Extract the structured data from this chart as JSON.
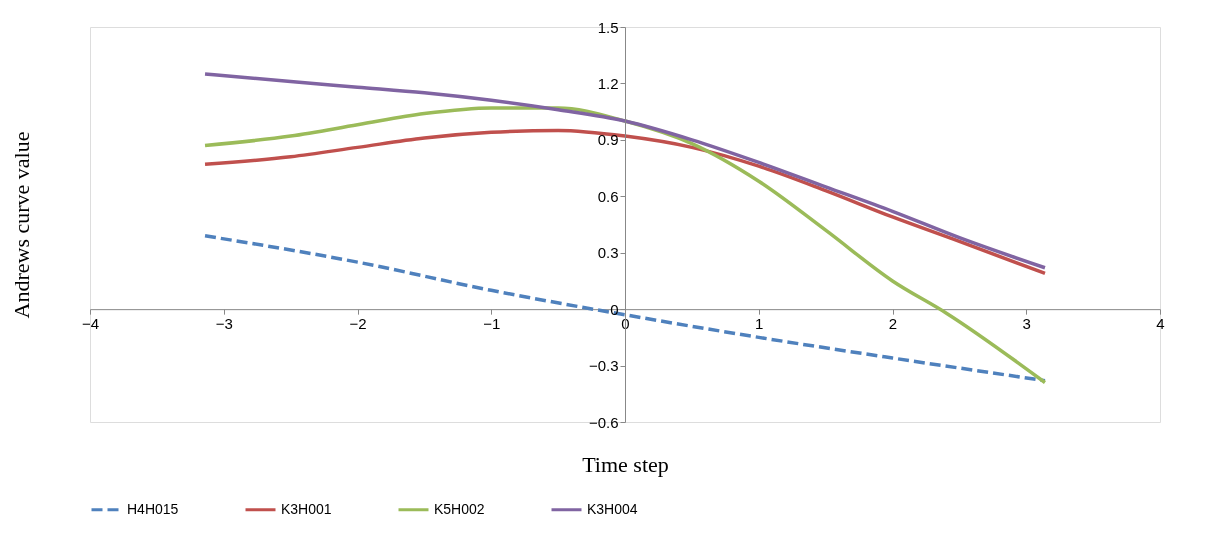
{
  "chart_data": {
    "type": "line",
    "xlabel": "Time step",
    "ylabel": "Andrews curve value",
    "xlim": [
      -4,
      4
    ],
    "xticks": [
      -4,
      -3,
      -2,
      -1,
      0,
      1,
      2,
      3,
      4
    ],
    "ylim": [
      -0.6,
      1.5
    ],
    "yticks": [
      -0.6,
      -0.3,
      0,
      0.3,
      0.6,
      0.9,
      1.2,
      1.5
    ],
    "grid": false,
    "legend": "bottom",
    "marker": "none",
    "series": [
      {
        "name": "H4H015",
        "color": "#4f81bd",
        "line_style": "dashed",
        "x": [
          -3.14,
          -2,
          -1,
          0,
          1,
          2,
          3.14
        ],
        "values": [
          0.39,
          0.25,
          0.1,
          -0.03,
          -0.15,
          -0.26,
          -0.38
        ]
      },
      {
        "name": "K3H001",
        "color": "#c0504d",
        "line_style": "solid",
        "x": [
          -3.14,
          -2.5,
          -2,
          -1.5,
          -1,
          -0.5,
          0,
          0.5,
          1,
          1.5,
          2,
          2.5,
          3.14
        ],
        "values": [
          0.77,
          0.81,
          0.86,
          0.91,
          0.94,
          0.95,
          0.92,
          0.86,
          0.76,
          0.63,
          0.49,
          0.36,
          0.19
        ]
      },
      {
        "name": "K5H002",
        "color": "#9bbb59",
        "line_style": "solid",
        "x": [
          -3.14,
          -2.5,
          -2,
          -1.5,
          -1,
          -0.5,
          0,
          0.5,
          1,
          1.5,
          2,
          2.4,
          3.14
        ],
        "values": [
          0.87,
          0.92,
          0.98,
          1.04,
          1.07,
          1.07,
          1.0,
          0.88,
          0.68,
          0.42,
          0.15,
          -0.02,
          -0.39
        ]
      },
      {
        "name": "K3H004",
        "color": "#8064a2",
        "line_style": "solid",
        "x": [
          -3.14,
          -2.5,
          -2,
          -1.5,
          -1,
          -0.5,
          0,
          0.5,
          1,
          1.5,
          2,
          2.5,
          3.14
        ],
        "values": [
          1.25,
          1.21,
          1.18,
          1.15,
          1.11,
          1.06,
          1.0,
          0.9,
          0.78,
          0.65,
          0.52,
          0.38,
          0.22
        ]
      }
    ]
  }
}
